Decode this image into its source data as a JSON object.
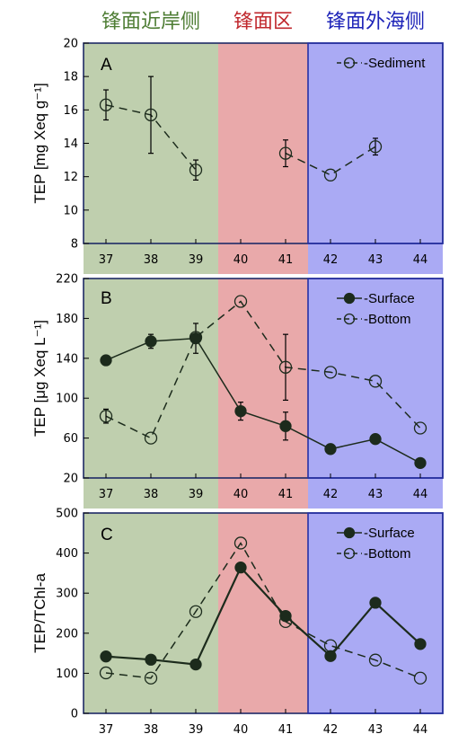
{
  "zone_titles": {
    "left": {
      "text": "锋面近岸侧",
      "color": "#4e7d34"
    },
    "middle": {
      "text": "锋面区",
      "color": "#c0282d"
    },
    "right": {
      "text": "锋面外海侧",
      "color": "#1d23b8"
    }
  },
  "colors": {
    "zone_left": "#bfcfae",
    "zone_middle": "#e9a9aa",
    "zone_right": "#aaaaf4",
    "frame": "#1f2a66",
    "marker_filled": "#1c2b1c",
    "line": "#1c2b1c"
  },
  "chart_data": [
    {
      "type": "line",
      "panel": "A",
      "x": [
        37,
        38,
        39,
        40,
        41,
        42,
        43,
        44
      ],
      "ylim": [
        8,
        20
      ],
      "yticks": [
        8,
        10,
        12,
        14,
        16,
        18,
        20
      ],
      "ylabel": "TEP [mg Xeq g⁻¹]",
      "zones": {
        "left": [
          37,
          39
        ],
        "middle": [
          40,
          41
        ],
        "right": [
          42,
          44
        ]
      },
      "series": [
        {
          "name": "Sediment",
          "style": "dashed-open",
          "values": [
            16.3,
            15.7,
            12.4,
            null,
            13.4,
            12.1,
            13.8,
            null
          ],
          "errors": [
            0.9,
            2.3,
            0.6,
            null,
            0.8,
            0,
            0.5,
            null
          ]
        }
      ],
      "legend": "top-right"
    },
    {
      "type": "line",
      "panel": "B",
      "x": [
        37,
        38,
        39,
        40,
        41,
        42,
        43,
        44
      ],
      "ylim": [
        20,
        220
      ],
      "yticks": [
        20,
        60,
        100,
        140,
        180,
        220
      ],
      "ylabel": "TEP [μg Xeq L⁻¹]",
      "zones": {
        "left": [
          37,
          39
        ],
        "middle": [
          40,
          41
        ],
        "right": [
          42,
          44
        ]
      },
      "series": [
        {
          "name": "Surface",
          "style": "solid-filled",
          "values": [
            138,
            157,
            160,
            87,
            72,
            49,
            59,
            35
          ],
          "errors": [
            0,
            7,
            15,
            9,
            14,
            0,
            0,
            0
          ]
        },
        {
          "name": "Bottom",
          "style": "dashed-open",
          "values": [
            82,
            60,
            161,
            197,
            131,
            126,
            117,
            70
          ],
          "errors": [
            7,
            0,
            0,
            0,
            33,
            0,
            0,
            0
          ]
        }
      ],
      "legend": "top-right"
    },
    {
      "type": "line",
      "panel": "C",
      "x": [
        37,
        38,
        39,
        40,
        41,
        42,
        43,
        44
      ],
      "ylim": [
        0,
        500
      ],
      "yticks": [
        0,
        100,
        200,
        300,
        400,
        500
      ],
      "ylabel": "TEP/TChl-a",
      "zones": {
        "left": [
          37,
          39
        ],
        "middle": [
          40,
          41
        ],
        "right": [
          42,
          44
        ]
      },
      "series": [
        {
          "name": "Surface",
          "style": "solid-filled",
          "values": [
            142,
            134,
            122,
            364,
            243,
            143,
            276,
            173
          ]
        },
        {
          "name": "Bottom",
          "style": "dashed-open",
          "values": [
            101,
            88,
            254,
            425,
            229,
            169,
            133,
            88
          ]
        }
      ],
      "legend": "top-right"
    }
  ]
}
